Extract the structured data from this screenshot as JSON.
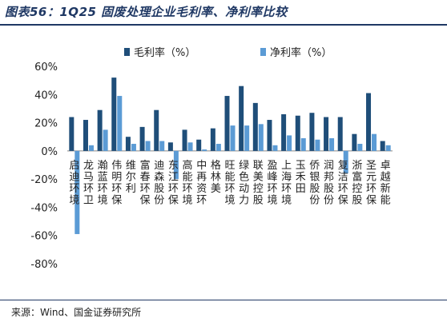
{
  "header": {
    "title": "图表56：1Q25 固废处理企业毛利率、净利率比较"
  },
  "footer": {
    "source": "来源：Wind、国金证券研究所"
  },
  "colors": {
    "gross": "#1f4e79",
    "net": "#5b9bd5",
    "rule": "#1f3864"
  },
  "chart_data": {
    "type": "bar",
    "categories": [
      "启迪环境",
      "龙马环卫",
      "瀚蓝环境",
      "伟明环保",
      "维尔利",
      "富春环保",
      "迪森股份",
      "东江环保",
      "高能环境",
      "中再资环",
      "格林美",
      "旺能环境",
      "绿色动力",
      "联美控股",
      "盈峰环境",
      "上海环境",
      "玉禾田",
      "侨银股份",
      "润邦股份",
      "复洁环保",
      "浙富控股",
      "圣元环保",
      "卓越新能"
    ],
    "series": [
      {
        "name": "毛利率（%）",
        "values": [
          24,
          22,
          29,
          52,
          10,
          17,
          29,
          6,
          15,
          8,
          16,
          39,
          46,
          34,
          22,
          26,
          25,
          27,
          24,
          24,
          12,
          41,
          7
        ]
      },
      {
        "name": "净利率（%）",
        "values": [
          -59,
          4,
          15,
          39,
          5,
          7,
          7,
          -20,
          6,
          1,
          5,
          18,
          18,
          19,
          4,
          11,
          9,
          8,
          9,
          -16,
          5,
          12,
          4
        ]
      }
    ],
    "ylim": [
      -80,
      60
    ],
    "yticks": [
      "60%",
      "40%",
      "20%",
      "0%",
      "-20%",
      "-40%",
      "-60%",
      "-80%"
    ],
    "ytick_values": [
      60,
      40,
      20,
      0,
      -20,
      -40,
      -60,
      -80
    ],
    "legend_position": "top-center",
    "grid": false
  }
}
